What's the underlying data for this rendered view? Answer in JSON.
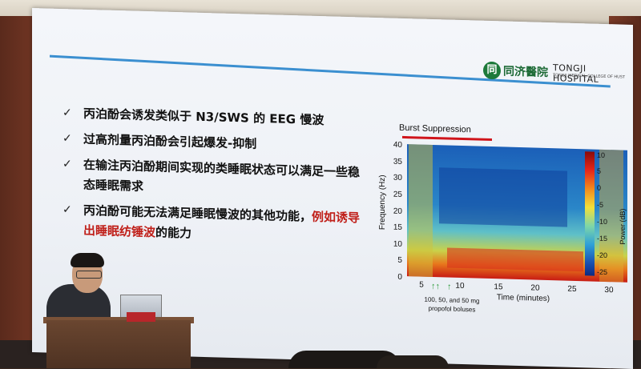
{
  "slide": {
    "logo": {
      "chinese": "同济醫院",
      "english": "TONGJI HOSPITAL",
      "subline": "TONGJI MEDICAL COLLEGE OF HUST"
    },
    "bullets": [
      {
        "text": "丙泊酚会诱发类似于 N3/SWS 的 EEG 慢波"
      },
      {
        "text": "过高剂量丙泊酚会引起爆发-抑制"
      },
      {
        "text": "在输注丙泊酚期间实现的类睡眠状态可以满足一些稳态睡眠需求"
      },
      {
        "text": "丙泊酚可能无法满足睡眠慢波的其他功能，",
        "highlight": "例如诱导出睡眠纺锤波",
        "suffix": "的能力"
      }
    ],
    "chart": {
      "title": "Burst Suppression",
      "ylabel": "Frequency (Hz)",
      "xlabel": "Time (minutes)",
      "y_ticks": [
        "40",
        "35",
        "30",
        "25",
        "20",
        "15",
        "10",
        "5",
        "0"
      ],
      "x_ticks": [
        "5",
        "10",
        "15",
        "20",
        "25",
        "30"
      ],
      "colorbar_label": "Power (dB)",
      "colorbar_ticks": [
        "10",
        "5",
        "0",
        "-5",
        "-10",
        "-15",
        "-20",
        "-25"
      ],
      "annotation_line1": "100, 50, and 50 mg",
      "annotation_line2": "propofol boluses",
      "arrow_color": "#2a9a3a"
    }
  },
  "chart_data": {
    "type": "heatmap",
    "title": "Burst Suppression",
    "xlabel": "Time (minutes)",
    "ylabel": "Frequency (Hz)",
    "xlim": [
      2,
      33
    ],
    "ylim": [
      0,
      40
    ],
    "colorbar_range_db": [
      -25,
      10
    ],
    "annotation": "100, 50, and 50 mg propofol boluses"
  }
}
